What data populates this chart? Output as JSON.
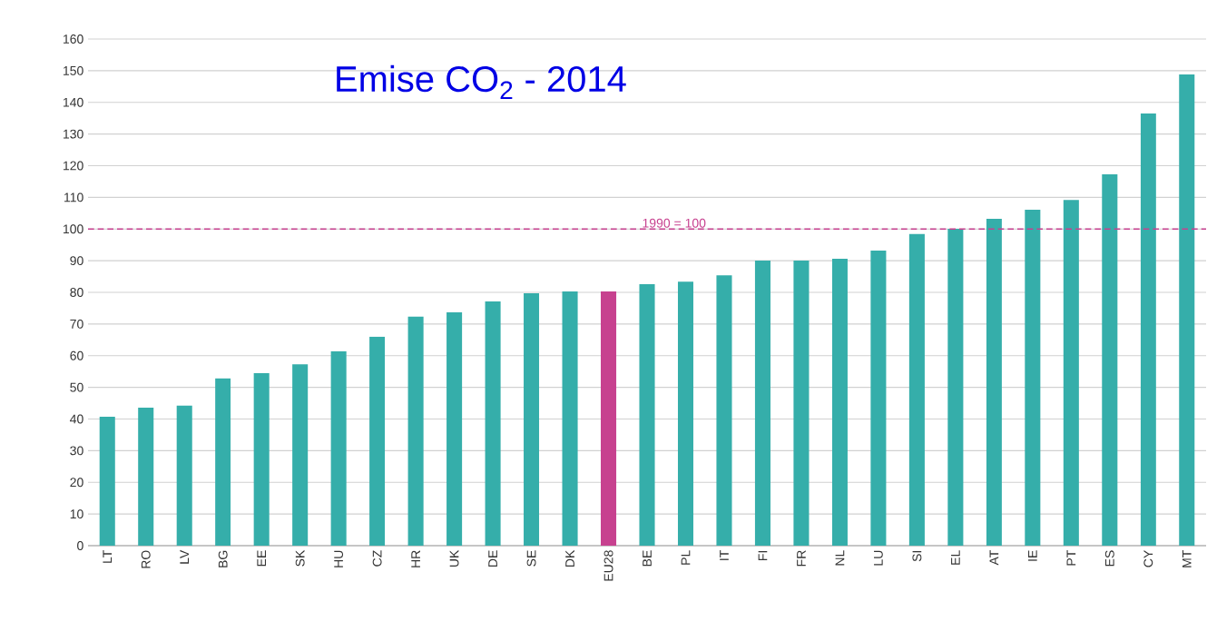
{
  "chart_data": {
    "type": "bar",
    "title": "Emise CO$_{2}$ - 2014",
    "categories": [
      "LT",
      "RO",
      "LV",
      "BG",
      "EE",
      "SK",
      "HU",
      "CZ",
      "HR",
      "UK",
      "DE",
      "SE",
      "DK",
      "EU28",
      "BE",
      "PL",
      "IT",
      "FI",
      "FR",
      "NL",
      "LU",
      "SI",
      "EL",
      "AT",
      "IE",
      "PT",
      "ES",
      "CY",
      "MT"
    ],
    "values": [
      40.7,
      43.6,
      44.2,
      52.8,
      54.5,
      57.3,
      61.4,
      66,
      72.3,
      73.7,
      77.1,
      79.7,
      80.3,
      80.3,
      82.6,
      83.4,
      85.4,
      90,
      90,
      90.6,
      93.2,
      98.4,
      100.1,
      103.2,
      106.1,
      109.2,
      117.3,
      136.5,
      148.8
    ],
    "colors": [
      "#35aeaa",
      "#35aeaa",
      "#35aeaa",
      "#35aeaa",
      "#35aeaa",
      "#35aeaa",
      "#35aeaa",
      "#35aeaa",
      "#35aeaa",
      "#35aeaa",
      "#35aeaa",
      "#35aeaa",
      "#35aeaa",
      "#c7418f",
      "#35aeaa",
      "#35aeaa",
      "#35aeaa",
      "#35aeaa",
      "#35aeaa",
      "#35aeaa",
      "#35aeaa",
      "#35aeaa",
      "#35aeaa",
      "#35aeaa",
      "#35aeaa",
      "#35aeaa",
      "#35aeaa",
      "#35aeaa",
      "#35aeaa"
    ],
    "ylim": [
      0,
      160
    ],
    "yticks": [
      0,
      10,
      20,
      30,
      40,
      50,
      60,
      70,
      80,
      90,
      100,
      110,
      120,
      130,
      140,
      150,
      160
    ],
    "grid": "y",
    "ref_lines": [
      {
        "axis": "y",
        "value": 100,
        "label": "1990 = 100",
        "color": "#c7418f",
        "line_style": "dashed"
      }
    ]
  }
}
